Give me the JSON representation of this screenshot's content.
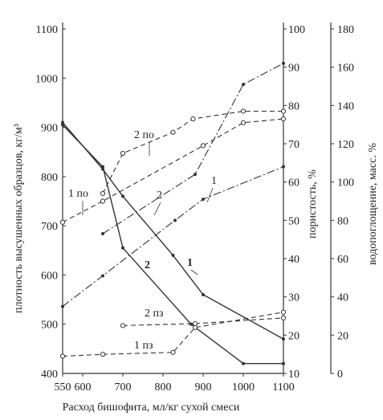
{
  "chart_data": {
    "type": "line",
    "xlabel": "Расход бишофита, мл/кг сухой смеси",
    "x_ticks": [
      550,
      600,
      700,
      800,
      900,
      1000,
      1100
    ],
    "xlim": [
      550,
      1100
    ],
    "axes": {
      "density": {
        "label": "плотность высушенных образцов, кг/м³",
        "range": [
          400,
          1100
        ],
        "ticks": [
          400,
          500,
          600,
          700,
          800,
          900,
          1000,
          1100
        ]
      },
      "porosity": {
        "label": "пористость, %",
        "range": [
          10,
          100
        ],
        "ticks": [
          10,
          20,
          30,
          40,
          50,
          60,
          70,
          80,
          90,
          100
        ]
      },
      "absorption": {
        "label": "водопоглощение, масс. %",
        "range": [
          0,
          180
        ],
        "ticks": [
          0,
          20,
          40,
          60,
          80,
          100,
          120,
          140,
          160,
          180
        ]
      }
    },
    "series": [
      {
        "name": "1",
        "axis": "density",
        "style": "solid",
        "marker": "dot",
        "label_bold": true,
        "x": [
          550,
          650,
          700,
          825,
          900,
          1100
        ],
        "y": [
          910,
          815,
          760,
          640,
          560,
          470
        ]
      },
      {
        "name": "2",
        "axis": "density",
        "style": "solid",
        "marker": "dot",
        "label_bold": true,
        "x": [
          550,
          650,
          700,
          870,
          1000,
          1100
        ],
        "y": [
          905,
          820,
          655,
          500,
          420,
          420
        ]
      },
      {
        "name": "1",
        "axis": "porosity",
        "style": "dashdot",
        "marker": "dot",
        "label_bold": false,
        "x": [
          550,
          650,
          830,
          900,
          1100
        ],
        "y": [
          27.5,
          35.5,
          50,
          55.5,
          64
        ]
      },
      {
        "name": "2",
        "axis": "porosity",
        "style": "dashdot",
        "marker": "dot",
        "label_bold": false,
        "x": [
          650,
          880,
          1000,
          1100
        ],
        "y": [
          46.5,
          62,
          85.5,
          91
        ]
      },
      {
        "name": "1 по",
        "axis": "absorption",
        "style": "dashed",
        "marker": "circle",
        "label_bold": false,
        "x": [
          550,
          650,
          900,
          1000,
          1100
        ],
        "y": [
          79,
          90,
          119,
          131,
          133
        ]
      },
      {
        "name": "2 по",
        "axis": "absorption",
        "style": "dashed",
        "marker": "circle",
        "label_bold": false,
        "x": [
          650,
          700,
          825,
          875,
          1000,
          1100
        ],
        "y": [
          94,
          115,
          126,
          133,
          137,
          137
        ]
      },
      {
        "name": "1 пз",
        "axis": "absorption",
        "style": "dashed",
        "marker": "circle",
        "label_bold": false,
        "x": [
          550,
          650,
          825,
          880,
          1100
        ],
        "y": [
          9,
          10,
          11,
          24,
          32
        ]
      },
      {
        "name": "2 пз",
        "axis": "absorption",
        "style": "dashed",
        "marker": "circle",
        "label_bold": false,
        "x": [
          700,
          880,
          1100
        ],
        "y": [
          25,
          26,
          29
        ]
      }
    ]
  }
}
